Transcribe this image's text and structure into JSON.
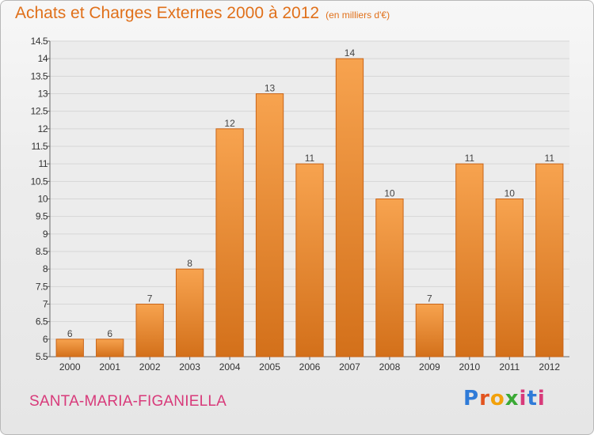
{
  "header": {
    "title": "Achats et Charges Externes 2000 à 2012",
    "subtitle": "(en milliers d'€)"
  },
  "footer": {
    "commune": "SANTA-MARIA-FIGANIELLA",
    "brand": [
      "P",
      "r",
      "o",
      "x",
      "i",
      "t",
      "i"
    ]
  },
  "colors": {
    "bar_top": "#f7a34f",
    "bar_bottom": "#d3701a",
    "accent": "#e0701a",
    "commune": "#d83a7a"
  },
  "chart_data": {
    "type": "bar",
    "title": "Achats et Charges Externes 2000 à 2012",
    "subtitle": "(en milliers d'€)",
    "categories": [
      "2000",
      "2001",
      "2002",
      "2003",
      "2004",
      "2005",
      "2006",
      "2007",
      "2008",
      "2009",
      "2010",
      "2011",
      "2012"
    ],
    "values": [
      6,
      6,
      7,
      8,
      12,
      13,
      11,
      14,
      10,
      7,
      11,
      10,
      11
    ],
    "data_labels": [
      "6",
      "6",
      "7",
      "8",
      "12",
      "13",
      "11",
      "14",
      "10",
      "7",
      "11",
      "10",
      "11"
    ],
    "ylim": [
      5.5,
      14.5
    ],
    "yticks": [
      5.5,
      6,
      6.5,
      7,
      7.5,
      8,
      8.5,
      9,
      9.5,
      10,
      10.5,
      11,
      11.5,
      12,
      12.5,
      13,
      13.5,
      14,
      14.5
    ],
    "ytick_labels": [
      "5.5",
      "6",
      "6.5",
      "7",
      "7.5",
      "8",
      "8.5",
      "9",
      "9.5",
      "10",
      "10.5",
      "11",
      "11.5",
      "12",
      "12.5",
      "13",
      "13.5",
      "14",
      "14.5"
    ],
    "grid": true,
    "xlabel": "",
    "ylabel": ""
  }
}
